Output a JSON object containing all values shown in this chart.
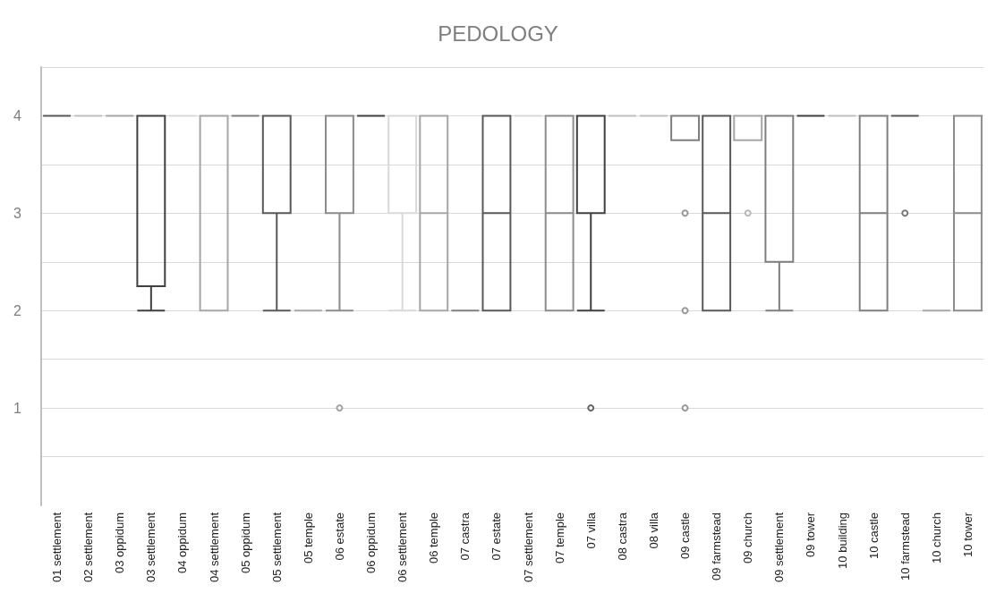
{
  "chart_data": {
    "type": "box",
    "title": "PEDOLOGY",
    "categories": [
      "01 settlement",
      "02 settlement",
      "03 oppidum",
      "03 settlement",
      "04 oppidum",
      "04 settlement",
      "05 oppidum",
      "05 settlement",
      "05 temple",
      "06 estate",
      "06 oppidum",
      "06 settlement",
      "06 temple",
      "07 castra",
      "07 estate",
      "07 settlement",
      "07 temple",
      "07 villa",
      "08 castra",
      "08 villa",
      "09 castle",
      "09 farmstead",
      "09 church",
      "09 settlement",
      "09 tower",
      "10 building",
      "10 castle",
      "10 farmstead",
      "10 church",
      "10 tower"
    ],
    "boxes": [
      {
        "low": 4,
        "q1": 4,
        "median": 4,
        "q3": 4,
        "high": 4
      },
      {
        "low": 4,
        "q1": 4,
        "median": 4,
        "q3": 4,
        "high": 4
      },
      {
        "low": 4,
        "q1": 4,
        "median": 4,
        "q3": 4,
        "high": 4
      },
      {
        "low": 2,
        "q1": 2.25,
        "median": 4,
        "q3": 4,
        "high": 4
      },
      {
        "low": 4,
        "q1": 4,
        "median": 4,
        "q3": 4,
        "high": 4
      },
      {
        "low": 2,
        "q1": 2,
        "median": 4,
        "q3": 4,
        "high": 4
      },
      {
        "low": 4,
        "q1": 4,
        "median": 4,
        "q3": 4,
        "high": 4
      },
      {
        "low": 2,
        "q1": 3,
        "median": 3,
        "q3": 4,
        "high": 4
      },
      {
        "low": 2,
        "q1": 2,
        "median": 2,
        "q3": 2,
        "high": 2
      },
      {
        "low": 2,
        "q1": 3,
        "median": 3,
        "q3": 4,
        "high": 4,
        "outliers": [
          1
        ]
      },
      {
        "low": 4,
        "q1": 4,
        "median": 4,
        "q3": 4,
        "high": 4
      },
      {
        "low": 2,
        "q1": 3,
        "median": 3,
        "q3": 4,
        "high": 4
      },
      {
        "low": 2,
        "q1": 2,
        "median": 3,
        "q3": 4,
        "high": 4
      },
      {
        "low": 2,
        "q1": 2,
        "median": 2,
        "q3": 2,
        "high": 2
      },
      {
        "low": 2,
        "q1": 2,
        "median": 3,
        "q3": 4,
        "high": 4
      },
      {
        "low": 4,
        "q1": 4,
        "median": 4,
        "q3": 4,
        "high": 4
      },
      {
        "low": 2,
        "q1": 2,
        "median": 3,
        "q3": 4,
        "high": 4
      },
      {
        "low": 2,
        "q1": 3,
        "median": 3,
        "q3": 4,
        "high": 4,
        "outliers": [
          1
        ]
      },
      {
        "low": 4,
        "q1": 4,
        "median": 4,
        "q3": 4,
        "high": 4
      },
      {
        "low": 4,
        "q1": 4,
        "median": 4,
        "q3": 4,
        "high": 4
      },
      {
        "low": 3.75,
        "q1": 3.75,
        "median": 4,
        "q3": 4,
        "high": 4,
        "outliers": [
          3,
          2,
          1
        ]
      },
      {
        "low": 2,
        "q1": 2,
        "median": 3,
        "q3": 4,
        "high": 4
      },
      {
        "low": 3.75,
        "q1": 3.75,
        "median": 4,
        "q3": 4,
        "high": 4,
        "outliers": [
          3
        ]
      },
      {
        "low": 2,
        "q1": 2.5,
        "median": 4,
        "q3": 4,
        "high": 4
      },
      {
        "low": 4,
        "q1": 4,
        "median": 4,
        "q3": 4,
        "high": 4
      },
      {
        "low": 4,
        "q1": 4,
        "median": 4,
        "q3": 4,
        "high": 4
      },
      {
        "low": 2,
        "q1": 2,
        "median": 3,
        "q3": 4,
        "high": 4
      },
      {
        "low": 4,
        "q1": 4,
        "median": 4,
        "q3": 4,
        "high": 4,
        "outliers": [
          3
        ]
      },
      {
        "low": 2,
        "q1": 2,
        "median": 2,
        "q3": 2,
        "high": 2
      },
      {
        "low": 2,
        "q1": 2,
        "median": 3,
        "q3": 4,
        "high": 4
      }
    ],
    "colors": [
      "#595959",
      "#bfbfbf",
      "#a6a6a6",
      "#404040",
      "#d9d9d9",
      "#a6a6a6",
      "#7f7f7f",
      "#595959",
      "#a6a6a6",
      "#8c8c8c",
      "#404040",
      "#d9d9d9",
      "#a6a6a6",
      "#7f7f7f",
      "#595959",
      "#d9d9d9",
      "#8c8c8c",
      "#404040",
      "#bfbfbf",
      "#bfbfbf",
      "#7f7f7f",
      "#595959",
      "#a6a6a6",
      "#7f7f7f",
      "#404040",
      "#bfbfbf",
      "#7f7f7f",
      "#595959",
      "#a6a6a6",
      "#8c8c8c"
    ],
    "ylim": [
      0,
      4.5
    ],
    "yticks": [
      {
        "value": 0.5,
        "label": null
      },
      1,
      {
        "value": 1.5,
        "label": null
      },
      2,
      {
        "value": 2.5,
        "label": null
      },
      3,
      {
        "value": 3.5,
        "label": null
      },
      4,
      {
        "value": 4.5,
        "label": null
      }
    ],
    "grid": "y"
  }
}
